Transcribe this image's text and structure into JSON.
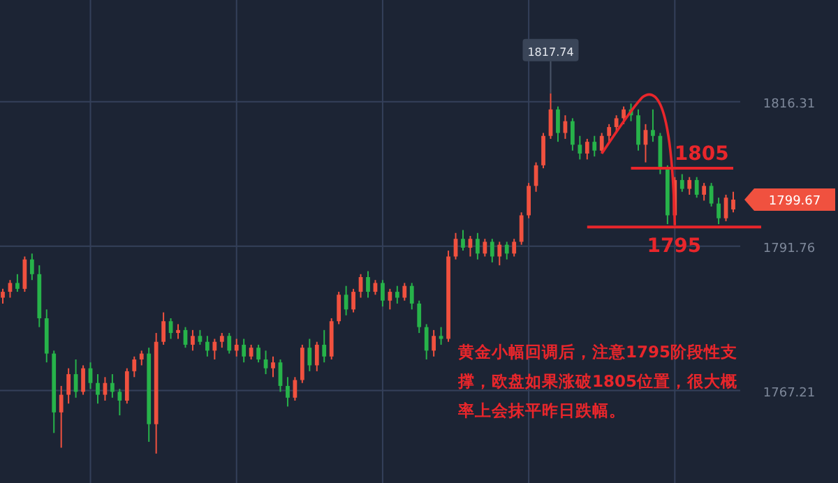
{
  "chart_data": {
    "type": "candlestick",
    "categories": [
      null,
      null,
      null,
      null,
      null,
      null,
      null,
      null,
      null,
      null,
      null,
      null,
      null,
      null,
      null,
      null,
      null,
      null,
      null,
      null,
      null,
      null,
      null,
      null,
      null,
      null,
      null,
      null,
      null,
      null,
      null,
      null,
      null,
      null,
      null,
      null,
      null,
      null,
      null,
      null,
      null,
      null,
      null,
      null,
      null,
      null,
      null,
      null,
      null,
      null,
      null,
      null,
      null,
      null,
      null,
      null,
      null,
      null,
      null,
      null,
      null,
      null,
      null,
      null,
      null,
      null,
      null,
      null,
      null,
      null,
      null,
      null,
      null,
      null,
      null,
      null,
      null,
      null,
      null,
      null,
      null,
      null,
      null,
      null,
      null,
      null,
      null,
      null,
      null,
      null,
      null,
      null,
      null,
      null,
      null,
      null,
      null,
      null,
      null,
      null,
      null
    ],
    "ohlc": [
      [
        1783.0,
        1784.5,
        1782.0,
        1784.0
      ],
      [
        1784.0,
        1786.0,
        1783.0,
        1785.5
      ],
      [
        1785.5,
        1787.0,
        1784.0,
        1784.5
      ],
      [
        1784.5,
        1790.0,
        1784.0,
        1789.5
      ],
      [
        1789.5,
        1790.5,
        1786.0,
        1787.0
      ],
      [
        1787.0,
        1788.5,
        1778.0,
        1779.5
      ],
      [
        1779.5,
        1781.0,
        1772.0,
        1773.5
      ],
      [
        1773.5,
        1774.0,
        1760.0,
        1763.5
      ],
      [
        1763.5,
        1768.0,
        1757.5,
        1766.5
      ],
      [
        1766.5,
        1771.0,
        1765.0,
        1770.0
      ],
      [
        1770.0,
        1772.5,
        1766.0,
        1767.0
      ],
      [
        1767.0,
        1771.5,
        1766.5,
        1771.0
      ],
      [
        1771.0,
        1772.0,
        1767.5,
        1768.5
      ],
      [
        1768.5,
        1770.0,
        1765.0,
        1766.5
      ],
      [
        1766.5,
        1769.5,
        1765.5,
        1768.5
      ],
      [
        1768.5,
        1770.0,
        1766.0,
        1767.0
      ],
      [
        1767.0,
        1767.5,
        1763.0,
        1765.5
      ],
      [
        1765.5,
        1771.0,
        1765.0,
        1770.5
      ],
      [
        1770.5,
        1773.0,
        1769.5,
        1772.5
      ],
      [
        1772.5,
        1774.0,
        1771.5,
        1773.5
      ],
      [
        1773.5,
        1774.5,
        1758.5,
        1761.5
      ],
      [
        1761.5,
        1777.0,
        1756.5,
        1775.5
      ],
      [
        1775.5,
        1780.5,
        1775.0,
        1779.0
      ],
      [
        1779.0,
        1779.5,
        1776.0,
        1777.0
      ],
      [
        1777.0,
        1778.5,
        1776.0,
        1777.5
      ],
      [
        1777.5,
        1778.0,
        1774.5,
        1775.0
      ],
      [
        1775.0,
        1777.5,
        1774.0,
        1776.5
      ],
      [
        1776.5,
        1777.5,
        1775.0,
        1775.5
      ],
      [
        1775.5,
        1776.5,
        1773.0,
        1774.0
      ],
      [
        1774.0,
        1776.0,
        1772.5,
        1775.5
      ],
      [
        1775.5,
        1777.0,
        1774.5,
        1776.5
      ],
      [
        1776.5,
        1777.0,
        1773.5,
        1774.0
      ],
      [
        1774.0,
        1776.0,
        1773.0,
        1775.0
      ],
      [
        1775.0,
        1776.0,
        1772.0,
        1773.0
      ],
      [
        1773.0,
        1775.0,
        1772.5,
        1774.5
      ],
      [
        1774.5,
        1775.0,
        1772.0,
        1772.5
      ],
      [
        1772.5,
        1774.0,
        1770.0,
        1771.0
      ],
      [
        1771.0,
        1773.0,
        1769.5,
        1772.0
      ],
      [
        1772.0,
        1772.5,
        1767.0,
        1768.0
      ],
      [
        1768.0,
        1769.5,
        1764.5,
        1766.0
      ],
      [
        1766.0,
        1769.5,
        1765.5,
        1769.0
      ],
      [
        1769.0,
        1775.0,
        1768.5,
        1774.5
      ],
      [
        1774.5,
        1776.0,
        1770.5,
        1771.5
      ],
      [
        1771.5,
        1775.5,
        1770.5,
        1775.0
      ],
      [
        1775.0,
        1777.5,
        1772.0,
        1773.0
      ],
      [
        1773.0,
        1779.5,
        1772.5,
        1779.0
      ],
      [
        1779.0,
        1784.0,
        1778.5,
        1783.5
      ],
      [
        1783.5,
        1785.0,
        1780.0,
        1781.0
      ],
      [
        1781.0,
        1784.5,
        1780.5,
        1784.0
      ],
      [
        1784.0,
        1787.0,
        1783.0,
        1786.5
      ],
      [
        1786.5,
        1787.5,
        1783.0,
        1784.0
      ],
      [
        1784.0,
        1786.0,
        1783.5,
        1785.5
      ],
      [
        1785.5,
        1786.0,
        1781.5,
        1782.5
      ],
      [
        1782.5,
        1784.5,
        1781.0,
        1784.0
      ],
      [
        1784.0,
        1785.0,
        1782.0,
        1783.0
      ],
      [
        1783.0,
        1785.5,
        1782.5,
        1785.0
      ],
      [
        1785.0,
        1785.5,
        1781.0,
        1782.0
      ],
      [
        1782.0,
        1782.5,
        1777.0,
        1778.0
      ],
      [
        1778.0,
        1778.5,
        1772.5,
        1774.0
      ],
      [
        1774.0,
        1777.5,
        1773.0,
        1776.5
      ],
      [
        1776.5,
        1778.0,
        1775.0,
        1776.0
      ],
      [
        1776.0,
        1791.0,
        1775.5,
        1790.0
      ],
      [
        1790.0,
        1794.0,
        1789.5,
        1793.0
      ],
      [
        1793.0,
        1794.5,
        1791.0,
        1791.5
      ],
      [
        1791.5,
        1793.5,
        1790.0,
        1793.0
      ],
      [
        1793.0,
        1794.0,
        1789.5,
        1790.5
      ],
      [
        1790.5,
        1793.0,
        1790.0,
        1792.5
      ],
      [
        1792.5,
        1793.0,
        1789.0,
        1790.0
      ],
      [
        1790.0,
        1792.5,
        1788.5,
        1792.0
      ],
      [
        1792.0,
        1792.5,
        1789.5,
        1790.5
      ],
      [
        1790.5,
        1793.0,
        1790.0,
        1792.5
      ],
      [
        1792.5,
        1797.5,
        1792.0,
        1797.0
      ],
      [
        1797.0,
        1802.5,
        1796.5,
        1802.0
      ],
      [
        1802.0,
        1806.0,
        1801.0,
        1805.5
      ],
      [
        1805.5,
        1811.0,
        1805.0,
        1810.5
      ],
      [
        1810.5,
        1817.74,
        1810.0,
        1815.0
      ],
      [
        1815.0,
        1815.5,
        1809.5,
        1811.0
      ],
      [
        1811.0,
        1814.0,
        1810.0,
        1813.0
      ],
      [
        1813.0,
        1813.5,
        1808.0,
        1809.0
      ],
      [
        1809.0,
        1810.5,
        1806.5,
        1807.5
      ],
      [
        1807.5,
        1810.0,
        1806.5,
        1809.5
      ],
      [
        1809.5,
        1810.5,
        1807.0,
        1808.0
      ],
      [
        1808.0,
        1811.0,
        1807.5,
        1810.5
      ],
      [
        1810.5,
        1812.5,
        1809.5,
        1812.0
      ],
      [
        1812.0,
        1814.0,
        1811.0,
        1813.5
      ],
      [
        1813.5,
        1815.5,
        1812.5,
        1815.0
      ],
      [
        1815.0,
        1816.0,
        1813.0,
        1814.0
      ],
      [
        1814.0,
        1815.0,
        1808.0,
        1809.0
      ],
      [
        1809.0,
        1812.5,
        1806.0,
        1811.5
      ],
      [
        1811.5,
        1815.0,
        1809.5,
        1810.5
      ],
      [
        1810.5,
        1811.0,
        1804.0,
        1805.0
      ],
      [
        1805.0,
        1805.5,
        1795.5,
        1797.0
      ],
      [
        1797.0,
        1803.5,
        1796.5,
        1803.0
      ],
      [
        1803.0,
        1804.0,
        1801.0,
        1801.5
      ],
      [
        1801.5,
        1803.5,
        1800.5,
        1803.0
      ],
      [
        1803.0,
        1803.5,
        1800.0,
        1800.5
      ],
      [
        1800.5,
        1802.5,
        1799.5,
        1802.0
      ],
      [
        1802.0,
        1802.5,
        1798.5,
        1799.0
      ],
      [
        1799.0,
        1800.0,
        1795.5,
        1796.5
      ],
      [
        1796.5,
        1800.5,
        1796.0,
        1800.0
      ],
      [
        1798.0,
        1801.0,
        1797.5,
        1799.67
      ]
    ],
    "ylim": [
      1751.5,
      1833.6
    ],
    "yticks": [
      1767.21,
      1791.76,
      1816.31
    ],
    "grid": true,
    "colors": [
      "#f0513f",
      "#f0513f",
      "#27b34a",
      "#f0513f",
      "#27b34a",
      "#27b34a",
      "#27b34a",
      "#27b34a",
      "#f0513f",
      "#f0513f",
      "#27b34a",
      "#f0513f",
      "#27b34a",
      "#27b34a",
      "#f0513f",
      "#27b34a",
      "#27b34a",
      "#f0513f",
      "#f0513f",
      "#f0513f",
      "#27b34a",
      "#f0513f",
      "#f0513f",
      "#27b34a",
      "#f0513f",
      "#27b34a",
      "#f0513f",
      "#27b34a",
      "#27b34a",
      "#f0513f",
      "#f0513f",
      "#27b34a",
      "#f0513f",
      "#27b34a",
      "#f0513f",
      "#27b34a",
      "#27b34a",
      "#f0513f",
      "#27b34a",
      "#27b34a",
      "#f0513f",
      "#f0513f",
      "#27b34a",
      "#f0513f",
      "#27b34a",
      "#f0513f",
      "#f0513f",
      "#27b34a",
      "#f0513f",
      "#f0513f",
      "#27b34a",
      "#f0513f",
      "#27b34a",
      "#f0513f",
      "#27b34a",
      "#f0513f",
      "#27b34a",
      "#27b34a",
      "#27b34a",
      "#f0513f",
      "#27b34a",
      "#f0513f",
      "#f0513f",
      "#27b34a",
      "#f0513f",
      "#27b34a",
      "#f0513f",
      "#27b34a",
      "#f0513f",
      "#27b34a",
      "#f0513f",
      "#f0513f",
      "#f0513f",
      "#f0513f",
      "#f0513f",
      "#f0513f",
      "#27b34a",
      "#f0513f",
      "#27b34a",
      "#27b34a",
      "#f0513f",
      "#27b34a",
      "#f0513f",
      "#f0513f",
      "#f0513f",
      "#f0513f",
      "#27b34a",
      "#27b34a",
      "#f0513f",
      "#27b34a",
      "#27b34a",
      "#27b34a",
      "#f0513f",
      "#27b34a",
      "#f0513f",
      "#27b34a",
      "#f0513f",
      "#27b34a",
      "#27b34a",
      "#f0513f",
      "#f0513f"
    ],
    "ref_lines": [
      {
        "axis": "y",
        "value": 1805,
        "label": "1805",
        "color": "#e8262b"
      },
      {
        "axis": "y",
        "value": 1795,
        "label": "1795",
        "color": "#e8262b"
      }
    ],
    "annotations": [
      {
        "text": "1817.74",
        "y": 1817.74
      },
      "1799.67",
      "黄金小幅回调后，注意1795阶段性支撑，欧盘如果涨破1805位置，很大概率上会抹平昨日跌幅。"
    ]
  }
}
